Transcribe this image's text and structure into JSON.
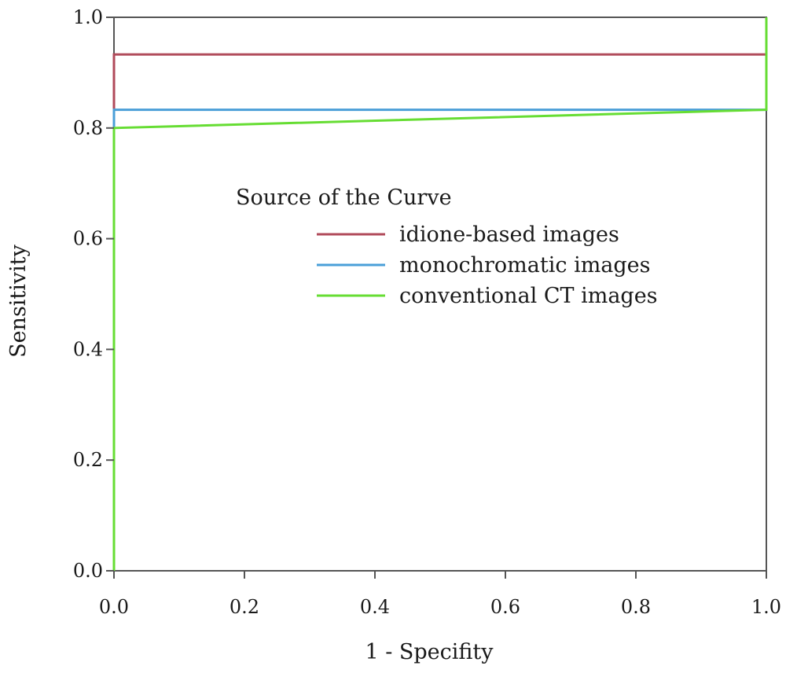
{
  "chart_data": {
    "type": "line",
    "title": "",
    "xlabel": "1 - Specifity",
    "ylabel": "Sensitivity",
    "xlim": [
      0.0,
      1.0
    ],
    "ylim": [
      0.0,
      1.0
    ],
    "x_ticks": [
      "0.0",
      "0.2",
      "0.4",
      "0.6",
      "0.8",
      "1.0"
    ],
    "y_ticks": [
      "0.0",
      "0.2",
      "0.4",
      "0.6",
      "0.8",
      "1.0"
    ],
    "grid": false,
    "legend": {
      "title": "Source of the Curve",
      "placement": "center-right"
    },
    "series": [
      {
        "name": "idione-based images",
        "color": "#b04a5a",
        "points": [
          [
            0.0,
            0.0
          ],
          [
            0.0,
            0.933
          ],
          [
            1.0,
            0.933
          ],
          [
            1.0,
            1.0
          ]
        ]
      },
      {
        "name": "monochromatic images",
        "color": "#4a9fd8",
        "points": [
          [
            0.0,
            0.0
          ],
          [
            0.0,
            0.833
          ],
          [
            1.0,
            0.833
          ],
          [
            1.0,
            1.0
          ]
        ]
      },
      {
        "name": "conventional CT images",
        "color": "#66dd33",
        "points": [
          [
            0.0,
            0.0
          ],
          [
            0.0,
            0.8
          ],
          [
            1.0,
            0.833
          ],
          [
            1.0,
            1.0
          ]
        ]
      }
    ],
    "frame_color": "#555555"
  }
}
